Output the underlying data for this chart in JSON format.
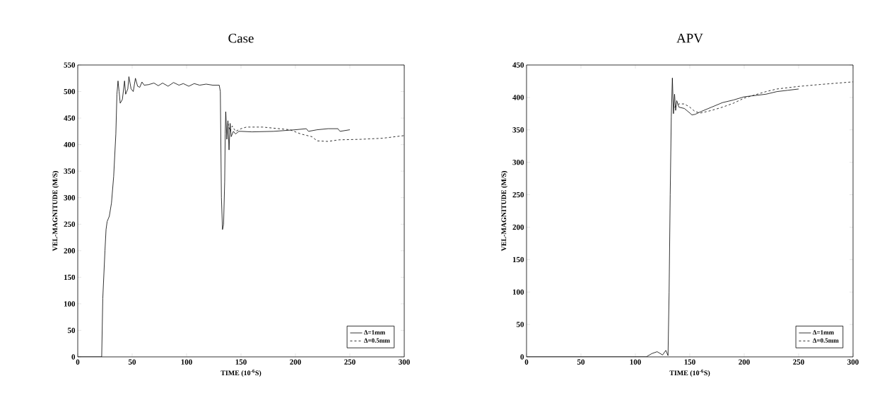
{
  "chart_data": [
    {
      "type": "line",
      "title": "Case",
      "xlabel": "TIME (10$^{-6}$S)",
      "ylabel": "VEL-MAGNITUDE (M/S)",
      "xlim": [
        0,
        300
      ],
      "xticks": [
        0,
        50,
        100,
        150,
        200,
        250,
        300
      ],
      "ylim": [
        0,
        550
      ],
      "yticks": [
        0,
        50,
        100,
        150,
        200,
        250,
        300,
        350,
        400,
        450,
        500,
        550
      ],
      "legend": "bottom right",
      "series": [
        {
          "name": "Δ=1mm",
          "color": "#000000",
          "line_style": "solid",
          "x": [
            0,
            22,
            23,
            25,
            26,
            27,
            29,
            31,
            33,
            35,
            36,
            37,
            38,
            39,
            41,
            43,
            44,
            46,
            47,
            49,
            51,
            53,
            55,
            57,
            59,
            61,
            65,
            70,
            74,
            78,
            83,
            88,
            93,
            97,
            102,
            107,
            112,
            118,
            124,
            130,
            131,
            132,
            133,
            134,
            135,
            135.5,
            136,
            137,
            138,
            139,
            140,
            141,
            143,
            145,
            148,
            150,
            160,
            180,
            200,
            210,
            212,
            220,
            230,
            239,
            241,
            250
          ],
          "values": [
            0,
            0,
            110,
            200,
            240,
            255,
            265,
            290,
            340,
            420,
            495,
            520,
            500,
            478,
            485,
            520,
            495,
            505,
            528,
            505,
            500,
            525,
            510,
            508,
            518,
            512,
            513,
            516,
            511,
            516,
            510,
            517,
            512,
            515,
            510,
            515,
            512,
            514,
            512,
            512,
            500,
            300,
            240,
            250,
            330,
            420,
            462,
            410,
            445,
            390,
            440,
            415,
            425,
            420,
            425,
            425,
            424,
            425,
            428,
            430,
            425,
            428,
            430,
            430,
            425,
            428
          ]
        },
        {
          "name": "Δ=0.5mm",
          "color": "#000000",
          "line_style": "dashed",
          "x": [
            138,
            140,
            142,
            145,
            150,
            155,
            170,
            185,
            195,
            205,
            215,
            220,
            230,
            240,
            260,
            280,
            300
          ],
          "values": [
            440,
            425,
            435,
            425,
            430,
            433,
            433,
            430,
            428,
            420,
            415,
            407,
            406,
            409,
            410,
            412,
            417
          ]
        }
      ]
    },
    {
      "type": "line",
      "title": "APV",
      "xlabel": "TIME (10$^{-6}$S)",
      "ylabel": "VEL-MAGNITUDE (M/S)",
      "xlim": [
        0,
        300
      ],
      "xticks": [
        0,
        50,
        100,
        150,
        200,
        250,
        300
      ],
      "ylim": [
        0,
        450
      ],
      "yticks": [
        0,
        50,
        100,
        150,
        200,
        250,
        300,
        350,
        400,
        450
      ],
      "legend": "bottom right",
      "series": [
        {
          "name": "Δ=1mm",
          "color": "#000000",
          "line_style": "solid",
          "x": [
            0,
            110,
            115,
            120,
            125,
            128,
            130,
            131,
            132,
            133,
            134,
            135,
            136,
            137,
            138,
            140,
            145,
            150,
            152,
            155,
            160,
            170,
            180,
            190,
            200,
            210,
            220,
            230,
            240,
            250
          ],
          "values": [
            0,
            0,
            5,
            8,
            3,
            10,
            2,
            100,
            250,
            370,
            430,
            375,
            405,
            380,
            395,
            385,
            383,
            376,
            373,
            374,
            378,
            385,
            392,
            396,
            401,
            403,
            405,
            409,
            411,
            413
          ]
        },
        {
          "name": "Δ=0.5mm",
          "color": "#000000",
          "line_style": "dashed",
          "x": [
            136,
            140,
            145,
            150,
            155,
            160,
            170,
            180,
            190,
            200,
            210,
            220,
            230,
            250,
            270,
            300
          ],
          "values": [
            385,
            390,
            390,
            385,
            378,
            376,
            380,
            385,
            391,
            399,
            404,
            409,
            413,
            417,
            420,
            424
          ]
        }
      ]
    }
  ]
}
